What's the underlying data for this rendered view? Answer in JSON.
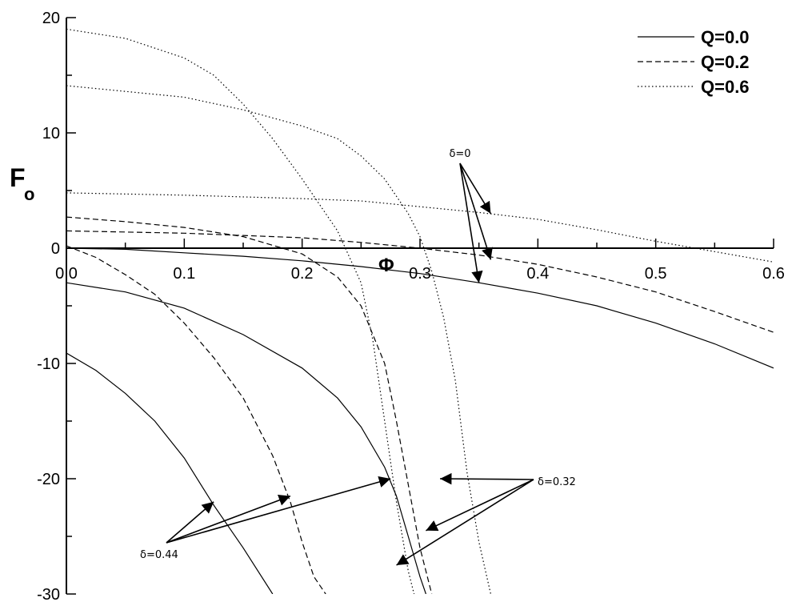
{
  "chart_data": {
    "type": "line",
    "title": "",
    "xlabel": "Φ",
    "ylabel": "F",
    "ylabel_sub": "o",
    "xlim": [
      0,
      0.6
    ],
    "ylim": [
      -30,
      20
    ],
    "x_ticks": [
      0.0,
      0.1,
      0.2,
      0.3,
      0.4,
      0.5,
      0.6
    ],
    "x_tick_labels": [
      "0.0",
      "0.1",
      "0.2",
      "0.3",
      "0.4",
      "0.5",
      "0.6"
    ],
    "y_ticks": [
      20,
      10,
      0,
      -10,
      -20,
      -30
    ],
    "y_tick_labels": [
      "20",
      "10",
      "0",
      "-10",
      "-20",
      "-30"
    ],
    "grid": false,
    "legend_position": "top-right",
    "legend": [
      {
        "label": "Q=0.0",
        "style": "solid"
      },
      {
        "label": "Q=0.2",
        "style": "dashed"
      },
      {
        "label": "Q=0.6",
        "style": "dotted"
      }
    ],
    "series": [
      {
        "Q": 0.0,
        "delta": 0,
        "style": "solid",
        "points": [
          [
            0,
            0
          ],
          [
            0.05,
            -0.1
          ],
          [
            0.1,
            -0.4
          ],
          [
            0.15,
            -0.7
          ],
          [
            0.2,
            -1.1
          ],
          [
            0.25,
            -1.6
          ],
          [
            0.3,
            -2.2
          ],
          [
            0.35,
            -3.0
          ],
          [
            0.4,
            -3.9
          ],
          [
            0.45,
            -5.0
          ],
          [
            0.5,
            -6.5
          ],
          [
            0.55,
            -8.3
          ],
          [
            0.6,
            -10.4
          ]
        ]
      },
      {
        "Q": 0.2,
        "delta": 0,
        "style": "dashed",
        "points": [
          [
            0,
            1.5
          ],
          [
            0.1,
            1.3
          ],
          [
            0.2,
            0.9
          ],
          [
            0.25,
            0.5
          ],
          [
            0.3,
            0
          ],
          [
            0.35,
            -0.6
          ],
          [
            0.4,
            -1.4
          ],
          [
            0.45,
            -2.5
          ],
          [
            0.5,
            -3.8
          ],
          [
            0.55,
            -5.5
          ],
          [
            0.6,
            -7.3
          ]
        ]
      },
      {
        "Q": 0.6,
        "delta": 0,
        "style": "dotted",
        "points": [
          [
            0,
            4.8
          ],
          [
            0.1,
            4.6
          ],
          [
            0.2,
            4.3
          ],
          [
            0.25,
            4.1
          ],
          [
            0.3,
            3.6
          ],
          [
            0.35,
            3.1
          ],
          [
            0.4,
            2.5
          ],
          [
            0.45,
            1.6
          ],
          [
            0.5,
            0.6
          ],
          [
            0.55,
            -0.3
          ],
          [
            0.6,
            -1.2
          ]
        ]
      },
      {
        "Q": 0.0,
        "delta": 0.32,
        "style": "solid",
        "points": [
          [
            0,
            -3.0
          ],
          [
            0.05,
            -3.8
          ],
          [
            0.1,
            -5.2
          ],
          [
            0.15,
            -7.5
          ],
          [
            0.2,
            -10.4
          ],
          [
            0.23,
            -13.0
          ],
          [
            0.25,
            -15.5
          ],
          [
            0.27,
            -19.0
          ],
          [
            0.28,
            -21.5
          ],
          [
            0.29,
            -25.0
          ],
          [
            0.3,
            -28.5
          ],
          [
            0.305,
            -30
          ]
        ]
      },
      {
        "Q": 0.2,
        "delta": 0.32,
        "style": "dashed",
        "points": [
          [
            0,
            2.7
          ],
          [
            0.05,
            2.3
          ],
          [
            0.1,
            1.8
          ],
          [
            0.15,
            1.0
          ],
          [
            0.2,
            -0.5
          ],
          [
            0.23,
            -2.5
          ],
          [
            0.25,
            -5.0
          ],
          [
            0.27,
            -10.0
          ],
          [
            0.28,
            -15.0
          ],
          [
            0.29,
            -20.5
          ],
          [
            0.3,
            -26.0
          ],
          [
            0.31,
            -30
          ]
        ]
      },
      {
        "Q": 0.6,
        "delta": 0.32,
        "style": "dotted",
        "points": [
          [
            0,
            14.1
          ],
          [
            0.1,
            13.1
          ],
          [
            0.15,
            12.0
          ],
          [
            0.2,
            10.6
          ],
          [
            0.23,
            9.5
          ],
          [
            0.25,
            8.0
          ],
          [
            0.27,
            6.0
          ],
          [
            0.29,
            3.0
          ],
          [
            0.3,
            1.0
          ],
          [
            0.31,
            -2.0
          ],
          [
            0.32,
            -6.0
          ],
          [
            0.33,
            -11.5
          ],
          [
            0.34,
            -19.5
          ],
          [
            0.35,
            -25.5
          ],
          [
            0.36,
            -30
          ]
        ]
      },
      {
        "Q": 0.0,
        "delta": 0.44,
        "style": "solid",
        "points": [
          [
            0,
            -9.1
          ],
          [
            0.025,
            -10.6
          ],
          [
            0.05,
            -12.6
          ],
          [
            0.075,
            -15.0
          ],
          [
            0.1,
            -18.2
          ],
          [
            0.125,
            -22.3
          ],
          [
            0.15,
            -26.0
          ],
          [
            0.175,
            -30
          ]
        ]
      },
      {
        "Q": 0.2,
        "delta": 0.44,
        "style": "dashed",
        "points": [
          [
            0,
            0.2
          ],
          [
            0.025,
            -0.8
          ],
          [
            0.05,
            -2.3
          ],
          [
            0.075,
            -4.0
          ],
          [
            0.1,
            -6.5
          ],
          [
            0.125,
            -9.5
          ],
          [
            0.15,
            -13.0
          ],
          [
            0.175,
            -18.0
          ],
          [
            0.19,
            -22.0
          ],
          [
            0.2,
            -25.5
          ],
          [
            0.21,
            -28.5
          ],
          [
            0.22,
            -30
          ]
        ]
      },
      {
        "Q": 0.6,
        "delta": 0.44,
        "style": "dotted",
        "points": [
          [
            0,
            19.0
          ],
          [
            0.05,
            18.2
          ],
          [
            0.1,
            16.5
          ],
          [
            0.125,
            15.0
          ],
          [
            0.15,
            12.5
          ],
          [
            0.175,
            9.5
          ],
          [
            0.2,
            6.0
          ],
          [
            0.23,
            1.5
          ],
          [
            0.25,
            -3.0
          ],
          [
            0.26,
            -8.0
          ],
          [
            0.27,
            -15.0
          ],
          [
            0.28,
            -22.0
          ],
          [
            0.29,
            -28.0
          ],
          [
            0.295,
            -30
          ]
        ]
      }
    ],
    "annotations": [
      {
        "text": "δ=0",
        "arrow_targets": [
          [
            0.36,
            3.0
          ],
          [
            0.35,
            -3.0
          ],
          [
            0.36,
            -1.0
          ]
        ]
      },
      {
        "text": "δ=0.32",
        "arrow_targets": [
          [
            0.317,
            -20.0
          ],
          [
            0.305,
            -24.5
          ],
          [
            0.28,
            -27.5
          ]
        ]
      },
      {
        "text": "δ=0.44",
        "arrow_targets": [
          [
            0.125,
            -22.0
          ],
          [
            0.19,
            -21.5
          ],
          [
            0.275,
            -20.0
          ]
        ]
      }
    ]
  }
}
